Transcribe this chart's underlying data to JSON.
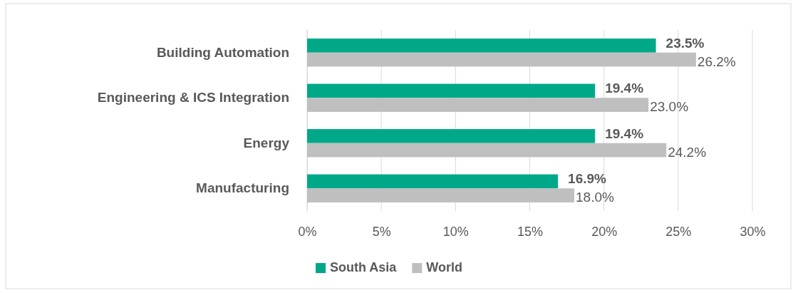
{
  "chart_data": {
    "type": "bar",
    "orientation": "horizontal",
    "categories": [
      "Building Automation",
      "Engineering & ICS Integration",
      "Energy",
      "Manufacturing"
    ],
    "series": [
      {
        "name": "South Asia",
        "color": "#00a88a",
        "values": [
          23.5,
          19.4,
          19.4,
          16.9
        ],
        "value_labels": [
          "23.5%",
          "19.4%",
          "19.4%",
          "16.9%"
        ]
      },
      {
        "name": "World",
        "color": "#bfbfbf",
        "values": [
          26.2,
          23.0,
          24.2,
          18.0
        ],
        "value_labels": [
          "26.2%",
          "23.0%",
          "24.2%",
          "18.0%"
        ]
      }
    ],
    "xlim": [
      0,
      30
    ],
    "xticks": [
      {
        "value": 0,
        "label": "0%"
      },
      {
        "value": 5,
        "label": "5%"
      },
      {
        "value": 10,
        "label": "10%"
      },
      {
        "value": 15,
        "label": "15%"
      },
      {
        "value": 20,
        "label": "20%"
      },
      {
        "value": 25,
        "label": "25%"
      },
      {
        "value": 30,
        "label": "30%"
      }
    ],
    "grid": "x",
    "legend": "bottom"
  }
}
